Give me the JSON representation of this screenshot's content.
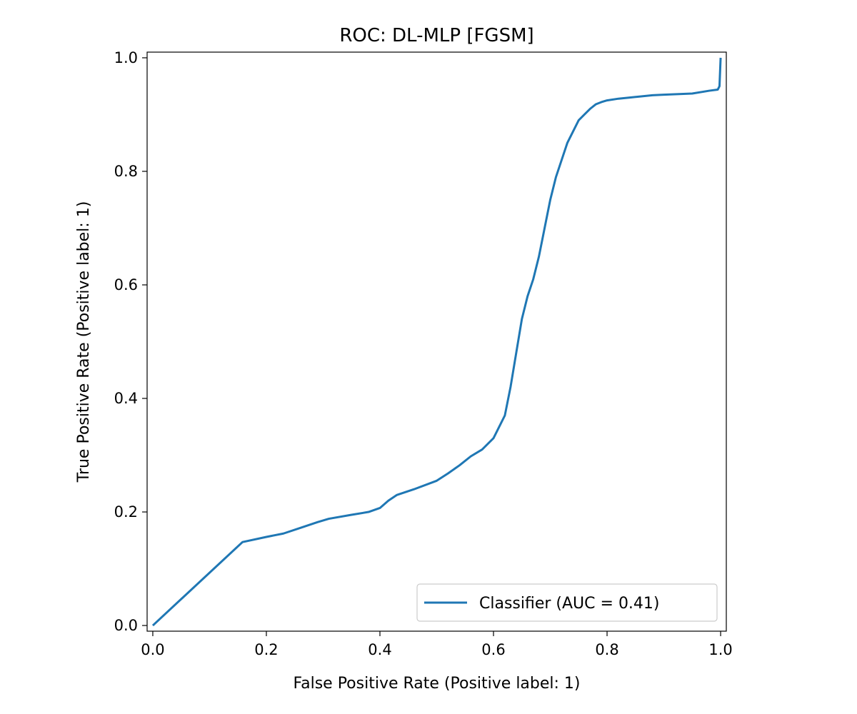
{
  "chart_data": {
    "type": "line",
    "title": "ROC: DL-MLP [FGSM]",
    "xlabel": "False Positive Rate (Positive label: 1)",
    "ylabel": "True Positive Rate (Positive label: 1)",
    "xlim": [
      -0.01,
      1.01
    ],
    "ylim": [
      -0.01,
      1.01
    ],
    "xticks": [
      0.0,
      0.2,
      0.4,
      0.6,
      0.8,
      1.0
    ],
    "yticks": [
      0.0,
      0.2,
      0.4,
      0.6,
      0.8,
      1.0
    ],
    "xtick_labels": [
      "0.0",
      "0.2",
      "0.4",
      "0.6",
      "0.8",
      "1.0"
    ],
    "ytick_labels": [
      "0.0",
      "0.2",
      "0.4",
      "0.6",
      "0.8",
      "1.0"
    ],
    "grid": false,
    "legend_position": "lower-right",
    "series": [
      {
        "name": "Classifier (AUC = 0.41)",
        "color": "#1f77b4",
        "x": [
          0.0,
          0.158,
          0.2,
          0.23,
          0.26,
          0.29,
          0.31,
          0.35,
          0.38,
          0.4,
          0.415,
          0.43,
          0.46,
          0.5,
          0.52,
          0.54,
          0.56,
          0.58,
          0.6,
          0.62,
          0.63,
          0.64,
          0.65,
          0.66,
          0.67,
          0.68,
          0.69,
          0.7,
          0.71,
          0.72,
          0.73,
          0.74,
          0.75,
          0.76,
          0.77,
          0.78,
          0.79,
          0.8,
          0.82,
          0.84,
          0.86,
          0.88,
          0.9,
          0.95,
          0.98,
          0.995,
          0.998,
          1.0
        ],
        "y": [
          0.0,
          0.147,
          0.156,
          0.162,
          0.172,
          0.182,
          0.188,
          0.195,
          0.2,
          0.207,
          0.22,
          0.23,
          0.24,
          0.255,
          0.268,
          0.282,
          0.298,
          0.31,
          0.33,
          0.37,
          0.42,
          0.48,
          0.54,
          0.58,
          0.61,
          0.65,
          0.7,
          0.75,
          0.79,
          0.82,
          0.85,
          0.87,
          0.89,
          0.9,
          0.91,
          0.918,
          0.922,
          0.925,
          0.928,
          0.93,
          0.932,
          0.934,
          0.935,
          0.937,
          0.942,
          0.944,
          0.95,
          1.0
        ]
      }
    ]
  }
}
